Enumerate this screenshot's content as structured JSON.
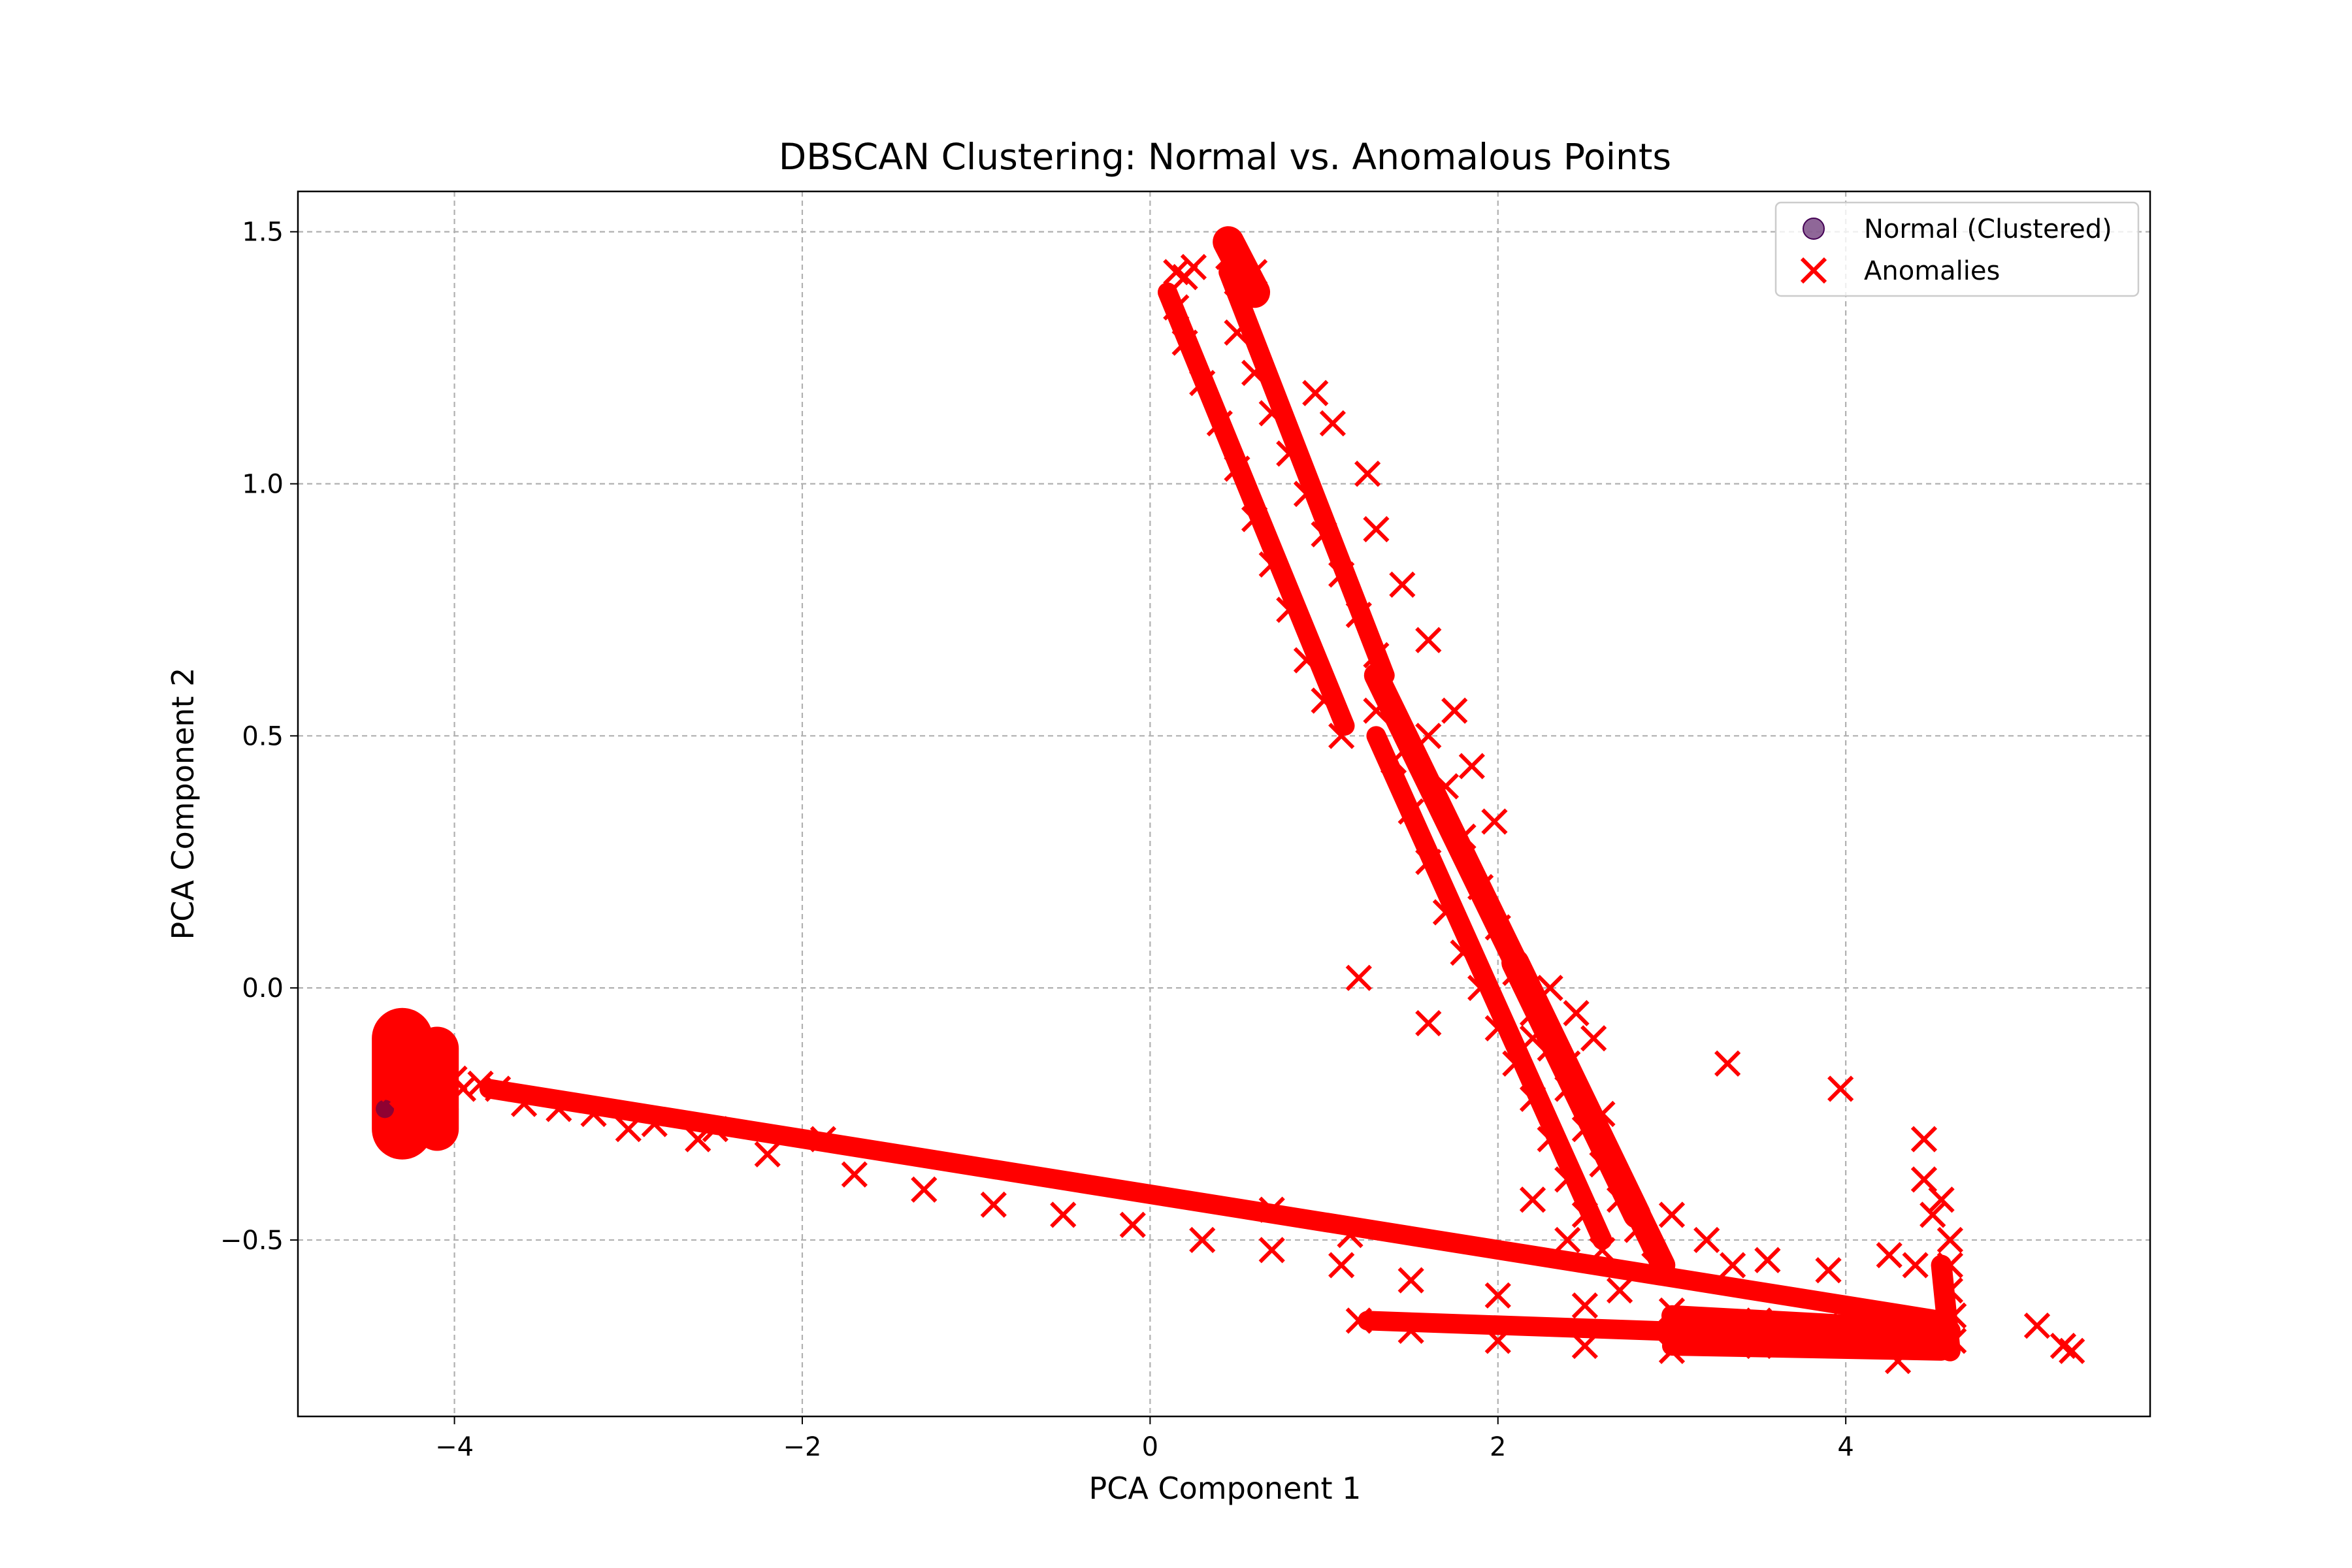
{
  "chart_data": {
    "type": "scatter",
    "title": "DBSCAN Clustering: Normal vs. Anomalous Points",
    "xlabel": "PCA Component 1",
    "ylabel": "PCA Component 2",
    "xlim": [
      -4.9,
      5.75
    ],
    "ylim": [
      -0.85,
      1.58
    ],
    "xticks": [
      -4,
      -2,
      0,
      2,
      4
    ],
    "xtick_labels": [
      "−4",
      "−2",
      "0",
      "2",
      "4"
    ],
    "yticks": [
      -0.5,
      0.0,
      0.5,
      1.0,
      1.5
    ],
    "ytick_labels": [
      "−0.5",
      "0.0",
      "0.5",
      "1.0",
      "1.5"
    ],
    "grid": true,
    "legend_position": "top-right",
    "series": [
      {
        "name": "Normal (Clustered)",
        "marker": "circle",
        "color": "#440154",
        "points": [
          [
            -4.4,
            -0.24
          ]
        ]
      },
      {
        "name": "Anomalies",
        "marker": "x",
        "color": "#ff0000",
        "points": [
          [
            -4.35,
            -0.2
          ],
          [
            -4.3,
            -0.15
          ],
          [
            -4.3,
            -0.25
          ],
          [
            -4.25,
            -0.1
          ],
          [
            -4.2,
            -0.2
          ],
          [
            -4.15,
            -0.27
          ],
          [
            -4.1,
            -0.12
          ],
          [
            -4.05,
            -0.22
          ],
          [
            -4.0,
            -0.18
          ],
          [
            -3.95,
            -0.2
          ],
          [
            -3.85,
            -0.19
          ],
          [
            -3.75,
            -0.2
          ],
          [
            -3.6,
            -0.23
          ],
          [
            -3.4,
            -0.24
          ],
          [
            -3.2,
            -0.25
          ],
          [
            -2.85,
            -0.27
          ],
          [
            -2.5,
            -0.28
          ],
          [
            -1.88,
            -0.3
          ],
          [
            -3.0,
            -0.28
          ],
          [
            -2.6,
            -0.3
          ],
          [
            -2.2,
            -0.33
          ],
          [
            -1.7,
            -0.37
          ],
          [
            -1.3,
            -0.4
          ],
          [
            -0.9,
            -0.43
          ],
          [
            -0.5,
            -0.45
          ],
          [
            -0.1,
            -0.47
          ],
          [
            0.3,
            -0.5
          ],
          [
            0.7,
            -0.44
          ],
          [
            0.7,
            -0.52
          ],
          [
            1.15,
            -0.49
          ],
          [
            1.1,
            -0.55
          ],
          [
            1.5,
            -0.58
          ],
          [
            2.0,
            -0.61
          ],
          [
            2.5,
            -0.63
          ],
          [
            3.0,
            -0.64
          ],
          [
            3.5,
            -0.66
          ],
          [
            4.0,
            -0.67
          ],
          [
            4.4,
            -0.68
          ],
          [
            1.2,
            -0.66
          ],
          [
            1.5,
            -0.68
          ],
          [
            2.0,
            -0.7
          ],
          [
            2.5,
            -0.71
          ],
          [
            3.0,
            -0.72
          ],
          [
            3.5,
            -0.71
          ],
          [
            4.0,
            -0.7
          ],
          [
            4.3,
            -0.74
          ],
          [
            4.45,
            -0.3
          ],
          [
            4.45,
            -0.38
          ],
          [
            4.5,
            -0.45
          ],
          [
            4.55,
            -0.42
          ],
          [
            4.6,
            -0.5
          ],
          [
            4.6,
            -0.55
          ],
          [
            4.6,
            -0.6
          ],
          [
            4.62,
            -0.65
          ],
          [
            4.62,
            -0.7
          ],
          [
            4.25,
            -0.53
          ],
          [
            4.4,
            -0.55
          ],
          [
            5.1,
            -0.67
          ],
          [
            5.25,
            -0.71
          ],
          [
            5.3,
            -0.72
          ],
          [
            3.32,
            -0.15
          ],
          [
            3.97,
            -0.2
          ],
          [
            1.2,
            0.02
          ],
          [
            1.6,
            -0.07
          ],
          [
            0.15,
            1.42
          ],
          [
            0.2,
            1.41
          ],
          [
            0.25,
            1.43
          ],
          [
            0.45,
            1.45
          ],
          [
            0.5,
            1.4
          ],
          [
            0.6,
            1.42
          ],
          [
            0.15,
            1.35
          ],
          [
            0.2,
            1.28
          ],
          [
            0.3,
            1.2
          ],
          [
            0.4,
            1.12
          ],
          [
            0.5,
            1.03
          ],
          [
            0.6,
            0.93
          ],
          [
            0.7,
            0.84
          ],
          [
            0.8,
            0.75
          ],
          [
            0.9,
            0.65
          ],
          [
            1.0,
            0.57
          ],
          [
            1.1,
            0.5
          ],
          [
            0.5,
            1.3
          ],
          [
            0.6,
            1.22
          ],
          [
            0.7,
            1.14
          ],
          [
            0.8,
            1.06
          ],
          [
            0.9,
            0.98
          ],
          [
            1.0,
            0.9
          ],
          [
            1.1,
            0.82
          ],
          [
            1.2,
            0.74
          ],
          [
            1.3,
            0.66
          ],
          [
            0.95,
            1.18
          ],
          [
            1.05,
            1.12
          ],
          [
            1.25,
            1.02
          ],
          [
            1.3,
            0.91
          ],
          [
            1.45,
            0.8
          ],
          [
            1.6,
            0.69
          ],
          [
            1.75,
            0.55
          ],
          [
            1.85,
            0.44
          ],
          [
            1.98,
            0.33
          ],
          [
            1.3,
            0.55
          ],
          [
            1.4,
            0.45
          ],
          [
            1.5,
            0.35
          ],
          [
            1.6,
            0.25
          ],
          [
            1.7,
            0.15
          ],
          [
            1.8,
            0.07
          ],
          [
            1.9,
            0.0
          ],
          [
            2.0,
            -0.08
          ],
          [
            2.1,
            -0.15
          ],
          [
            2.2,
            -0.22
          ],
          [
            2.3,
            -0.3
          ],
          [
            2.4,
            -0.38
          ],
          [
            2.5,
            -0.45
          ],
          [
            2.6,
            -0.52
          ],
          [
            1.6,
            0.5
          ],
          [
            1.7,
            0.4
          ],
          [
            1.8,
            0.3
          ],
          [
            1.9,
            0.2
          ],
          [
            2.0,
            0.12
          ],
          [
            2.1,
            0.03
          ],
          [
            2.2,
            -0.05
          ],
          [
            2.3,
            -0.12
          ],
          [
            2.4,
            -0.2
          ],
          [
            2.5,
            -0.28
          ],
          [
            2.6,
            -0.35
          ],
          [
            2.7,
            -0.42
          ],
          [
            2.8,
            -0.48
          ],
          [
            2.9,
            -0.55
          ],
          [
            2.3,
            0.0
          ],
          [
            2.45,
            -0.05
          ],
          [
            2.55,
            -0.1
          ],
          [
            2.2,
            -0.1
          ],
          [
            2.4,
            -0.15
          ],
          [
            2.6,
            -0.25
          ],
          [
            2.2,
            -0.42
          ],
          [
            2.4,
            -0.5
          ],
          [
            2.7,
            -0.6
          ],
          [
            3.0,
            -0.45
          ],
          [
            3.2,
            -0.5
          ],
          [
            3.35,
            -0.55
          ],
          [
            3.55,
            -0.54
          ],
          [
            3.9,
            -0.56
          ]
        ]
      }
    ],
    "bands": [
      {
        "series": "Anomalies",
        "from": [
          -3.8,
          -0.2
        ],
        "to": [
          4.55,
          -0.66
        ],
        "width": 0.055
      },
      {
        "series": "Anomalies",
        "from": [
          1.25,
          -0.66
        ],
        "to": [
          4.55,
          -0.7
        ],
        "width": 0.03
      },
      {
        "series": "Anomalies",
        "from": [
          3.0,
          -0.71
        ],
        "to": [
          4.55,
          -0.72
        ],
        "width": 0.03
      },
      {
        "series": "Anomalies",
        "from": [
          0.1,
          1.38
        ],
        "to": [
          1.12,
          0.52
        ],
        "width": 0.04
      },
      {
        "series": "Anomalies",
        "from": [
          0.45,
          1.42
        ],
        "to": [
          1.35,
          0.62
        ],
        "width": 0.05
      },
      {
        "series": "Anomalies",
        "from": [
          1.3,
          0.62
        ],
        "to": [
          2.95,
          -0.55
        ],
        "width": 0.14
      },
      {
        "series": "Anomalies",
        "from": [
          1.3,
          0.5
        ],
        "to": [
          2.6,
          -0.5
        ],
        "width": 0.08
      },
      {
        "series": "Anomalies",
        "from": [
          2.1,
          0.05
        ],
        "to": [
          2.8,
          -0.45
        ],
        "width": 0.16
      },
      {
        "series": "Anomalies",
        "from": [
          -4.3,
          -0.1
        ],
        "to": [
          -4.3,
          -0.28
        ],
        "width": 0.35
      },
      {
        "series": "Anomalies",
        "from": [
          -4.1,
          -0.12
        ],
        "to": [
          -4.1,
          -0.28
        ],
        "width": 0.25
      },
      {
        "series": "Anomalies",
        "from": [
          0.45,
          1.48
        ],
        "to": [
          0.6,
          1.38
        ],
        "width": 0.18
      },
      {
        "series": "Anomalies",
        "from": [
          3.0,
          -0.65
        ],
        "to": [
          4.6,
          -0.68
        ],
        "width": 0.12
      },
      {
        "series": "Anomalies",
        "from": [
          4.55,
          -0.55
        ],
        "to": [
          4.6,
          -0.72
        ],
        "width": 0.12
      }
    ]
  }
}
